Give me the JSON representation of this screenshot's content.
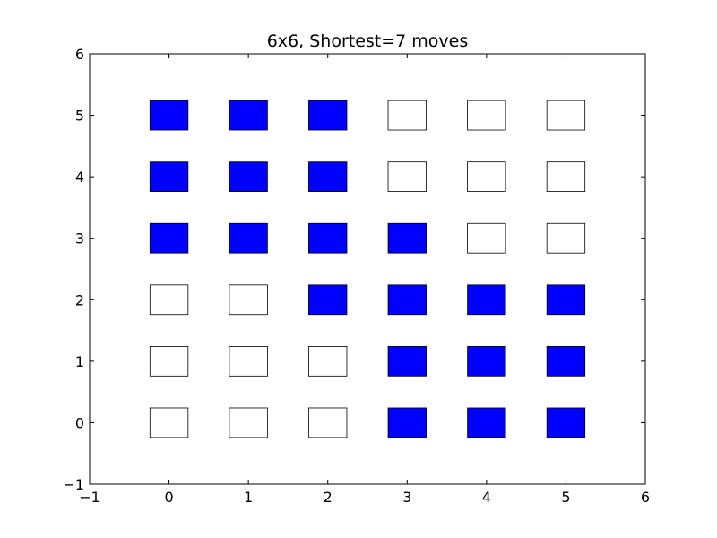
{
  "chart_data": {
    "type": "heatmap",
    "title": "6x6, Shortest=7 moves",
    "xlabel": "",
    "ylabel": "",
    "xlim": [
      -1,
      6
    ],
    "ylim": [
      -1,
      6
    ],
    "xticks": [
      -1,
      0,
      1,
      2,
      3,
      4,
      5,
      6
    ],
    "yticks": [
      -1,
      0,
      1,
      2,
      3,
      4,
      5,
      6
    ],
    "xtick_labels": [
      "−1",
      "0",
      "1",
      "2",
      "3",
      "4",
      "5",
      "6"
    ],
    "ytick_labels": [
      "−1",
      "0",
      "1",
      "2",
      "3",
      "4",
      "5",
      "6"
    ],
    "grid": false,
    "cell_half_size": 0.24,
    "colors": {
      "filled": "#0000ff",
      "empty": "#ffffff",
      "edge": "#000000"
    },
    "cells": [
      {
        "x": 0,
        "y": 5,
        "filled": true
      },
      {
        "x": 1,
        "y": 5,
        "filled": true
      },
      {
        "x": 2,
        "y": 5,
        "filled": true
      },
      {
        "x": 3,
        "y": 5,
        "filled": false
      },
      {
        "x": 4,
        "y": 5,
        "filled": false
      },
      {
        "x": 5,
        "y": 5,
        "filled": false
      },
      {
        "x": 0,
        "y": 4,
        "filled": true
      },
      {
        "x": 1,
        "y": 4,
        "filled": true
      },
      {
        "x": 2,
        "y": 4,
        "filled": true
      },
      {
        "x": 3,
        "y": 4,
        "filled": false
      },
      {
        "x": 4,
        "y": 4,
        "filled": false
      },
      {
        "x": 5,
        "y": 4,
        "filled": false
      },
      {
        "x": 0,
        "y": 3,
        "filled": true
      },
      {
        "x": 1,
        "y": 3,
        "filled": true
      },
      {
        "x": 2,
        "y": 3,
        "filled": true
      },
      {
        "x": 3,
        "y": 3,
        "filled": true
      },
      {
        "x": 4,
        "y": 3,
        "filled": false
      },
      {
        "x": 5,
        "y": 3,
        "filled": false
      },
      {
        "x": 0,
        "y": 2,
        "filled": false
      },
      {
        "x": 1,
        "y": 2,
        "filled": false
      },
      {
        "x": 2,
        "y": 2,
        "filled": true
      },
      {
        "x": 3,
        "y": 2,
        "filled": true
      },
      {
        "x": 4,
        "y": 2,
        "filled": true
      },
      {
        "x": 5,
        "y": 2,
        "filled": true
      },
      {
        "x": 0,
        "y": 1,
        "filled": false
      },
      {
        "x": 1,
        "y": 1,
        "filled": false
      },
      {
        "x": 2,
        "y": 1,
        "filled": false
      },
      {
        "x": 3,
        "y": 1,
        "filled": true
      },
      {
        "x": 4,
        "y": 1,
        "filled": true
      },
      {
        "x": 5,
        "y": 1,
        "filled": true
      },
      {
        "x": 0,
        "y": 0,
        "filled": false
      },
      {
        "x": 1,
        "y": 0,
        "filled": false
      },
      {
        "x": 2,
        "y": 0,
        "filled": false
      },
      {
        "x": 3,
        "y": 0,
        "filled": true
      },
      {
        "x": 4,
        "y": 0,
        "filled": true
      },
      {
        "x": 5,
        "y": 0,
        "filled": true
      }
    ]
  }
}
